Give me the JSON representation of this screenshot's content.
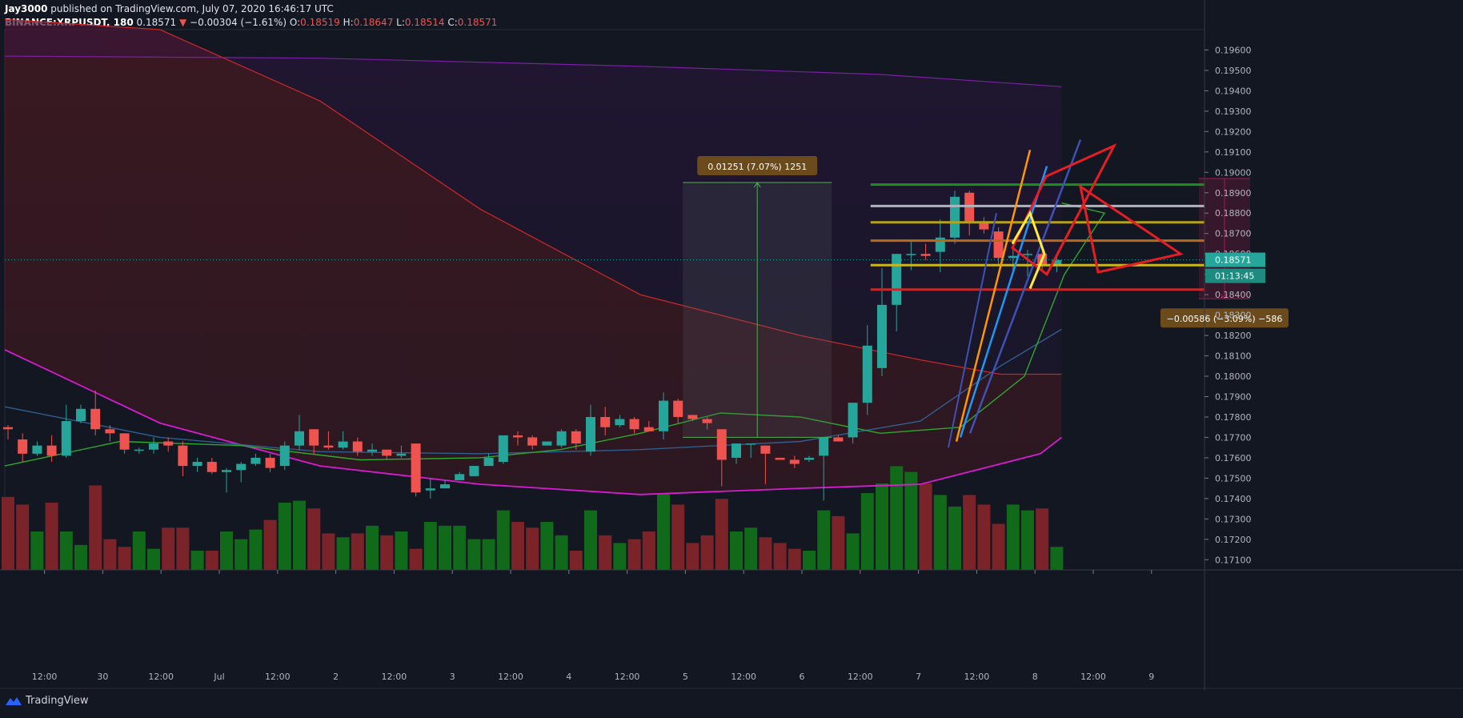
{
  "header": {
    "author": "Jay3000",
    "published": "published on TradingView.com, July 07, 2020 16:46:17 UTC",
    "symbol": "BINANCE:XRPUSDT, 180",
    "last": "0.18571",
    "change": "−0.00304 (−1.61%)",
    "o_label": "O:",
    "o": "0.18519",
    "h_label": "H:",
    "h": "0.18647",
    "l_label": "L:",
    "l": "0.18514",
    "c_label": "C:",
    "c": "0.18571"
  },
  "footer": {
    "brand": "TradingView"
  },
  "chart_data": {
    "type": "candlestick",
    "symbol": "BINANCE:XRPUSDT",
    "interval": "180",
    "ylim": [
      0.1705,
      0.197
    ],
    "y_ticks": [
      0.171,
      0.172,
      0.173,
      0.174,
      0.175,
      0.176,
      0.177,
      0.178,
      0.179,
      0.18,
      0.181,
      0.182,
      0.183,
      0.184,
      0.185,
      0.186,
      0.187,
      0.188,
      0.189,
      0.19,
      0.191,
      0.192,
      0.193,
      0.194,
      0.195,
      0.196
    ],
    "y_tick_labels": [
      "0.17100",
      "0.17200",
      "0.17300",
      "0.17400",
      "0.17500",
      "0.17600",
      "0.17700",
      "0.17800",
      "0.17900",
      "0.18000",
      "0.18100",
      "0.18200",
      "0.18300",
      "0.18400",
      "0.18500",
      "0.18600",
      "0.18700",
      "0.18800",
      "0.18900",
      "0.19000",
      "0.19100",
      "0.19200",
      "0.19300",
      "0.19400",
      "0.19500",
      "0.19600"
    ],
    "x_tick_labels": [
      "12:00",
      "30",
      "12:00",
      "Jul",
      "12:00",
      "2",
      "12:00",
      "3",
      "12:00",
      "4",
      "12:00",
      "5",
      "12:00",
      "6",
      "12:00",
      "7",
      "12:00",
      "8",
      "12:00",
      "9"
    ],
    "x_tick_slots": [
      3,
      7,
      11,
      15,
      19,
      23,
      27,
      31,
      35,
      39,
      43,
      47,
      51,
      55,
      59,
      63,
      67,
      71,
      75,
      79
    ],
    "candles": [
      [
        0.1775,
        0.1774,
        0.1769,
        0.1776
      ],
      [
        0.1769,
        0.1762,
        0.1758,
        0.1772
      ],
      [
        0.1762,
        0.1766,
        0.1761,
        0.1768
      ],
      [
        0.1766,
        0.1761,
        0.1758,
        0.1771
      ],
      [
        0.1761,
        0.1778,
        0.176,
        0.1786
      ],
      [
        0.1778,
        0.1784,
        0.1777,
        0.1786
      ],
      [
        0.1784,
        0.1774,
        0.1771,
        0.1793
      ],
      [
        0.1774,
        0.1772,
        0.1768,
        0.1776
      ],
      [
        0.1772,
        0.1764,
        0.1762,
        0.1772
      ],
      [
        0.1764,
        0.1764,
        0.1762,
        0.1765
      ],
      [
        0.1764,
        0.1767,
        0.1762,
        0.177
      ],
      [
        0.1768,
        0.1766,
        0.1763,
        0.177
      ],
      [
        0.1766,
        0.1756,
        0.1751,
        0.1768
      ],
      [
        0.1756,
        0.1758,
        0.1753,
        0.176
      ],
      [
        0.1758,
        0.1753,
        0.1752,
        0.176
      ],
      [
        0.1753,
        0.1754,
        0.1743,
        0.1755
      ],
      [
        0.1754,
        0.1757,
        0.1748,
        0.1758
      ],
      [
        0.1757,
        0.176,
        0.1756,
        0.1762
      ],
      [
        0.176,
        0.1755,
        0.1753,
        0.1762
      ],
      [
        0.1756,
        0.1766,
        0.1754,
        0.1768
      ],
      [
        0.1766,
        0.1773,
        0.1764,
        0.1781
      ],
      [
        0.1774,
        0.1766,
        0.1762,
        0.1774
      ],
      [
        0.1766,
        0.1765,
        0.1764,
        0.1773
      ],
      [
        0.1765,
        0.1768,
        0.1764,
        0.1773
      ],
      [
        0.1768,
        0.1763,
        0.1761,
        0.177
      ],
      [
        0.1763,
        0.1764,
        0.1761,
        0.1767
      ],
      [
        0.1764,
        0.1761,
        0.1759,
        0.1762
      ],
      [
        0.1761,
        0.1762,
        0.176,
        0.1766
      ],
      [
        0.1767,
        0.1743,
        0.1741,
        0.1767
      ],
      [
        0.1744,
        0.1745,
        0.174,
        0.175
      ],
      [
        0.1745,
        0.1747,
        0.1745,
        0.1749
      ],
      [
        0.1749,
        0.1752,
        0.1749,
        0.1753
      ],
      [
        0.1751,
        0.1756,
        0.1751,
        0.1756
      ],
      [
        0.1756,
        0.176,
        0.1756,
        0.1762
      ],
      [
        0.1758,
        0.1771,
        0.1757,
        0.1771
      ],
      [
        0.1771,
        0.177,
        0.1766,
        0.1773
      ],
      [
        0.177,
        0.1766,
        0.1764,
        0.1771
      ],
      [
        0.1766,
        0.1768,
        0.1766,
        0.1768
      ],
      [
        0.1766,
        0.1773,
        0.1765,
        0.1774
      ],
      [
        0.1773,
        0.1767,
        0.1764,
        0.1774
      ],
      [
        0.1763,
        0.178,
        0.1761,
        0.1786
      ],
      [
        0.178,
        0.1775,
        0.1771,
        0.1785
      ],
      [
        0.1776,
        0.1779,
        0.1775,
        0.1781
      ],
      [
        0.1779,
        0.1774,
        0.1772,
        0.178
      ],
      [
        0.1775,
        0.1773,
        0.1773,
        0.1778
      ],
      [
        0.1773,
        0.1788,
        0.1769,
        0.1792
      ],
      [
        0.1788,
        0.178,
        0.1777,
        0.1789
      ],
      [
        0.1781,
        0.1779,
        0.1778,
        0.1781
      ],
      [
        0.1779,
        0.1777,
        0.1774,
        0.178
      ],
      [
        0.1774,
        0.1759,
        0.1746,
        0.1774
      ],
      [
        0.176,
        0.1767,
        0.1757,
        0.1767
      ],
      [
        0.1767,
        0.1767,
        0.176,
        0.1767
      ],
      [
        0.1766,
        0.1762,
        0.1747,
        0.1766
      ],
      [
        0.176,
        0.1759,
        0.1759,
        0.176
      ],
      [
        0.1759,
        0.1757,
        0.1755,
        0.1761
      ],
      [
        0.1759,
        0.176,
        0.1758,
        0.1761
      ],
      [
        0.1761,
        0.177,
        0.1739,
        0.177
      ],
      [
        0.177,
        0.1768,
        0.1768,
        0.1771
      ],
      [
        0.177,
        0.1787,
        0.1767,
        0.1786
      ],
      [
        0.1787,
        0.1815,
        0.1781,
        0.1825
      ],
      [
        0.1804,
        0.1835,
        0.18,
        0.1853
      ],
      [
        0.1835,
        0.186,
        0.1822,
        0.186
      ],
      [
        0.186,
        0.186,
        0.1852,
        0.1866
      ],
      [
        0.186,
        0.1859,
        0.1857,
        0.1865
      ],
      [
        0.1861,
        0.1868,
        0.1851,
        0.1877
      ],
      [
        0.1868,
        0.1888,
        0.1865,
        0.1891
      ],
      [
        0.189,
        0.1876,
        0.1869,
        0.1891
      ],
      [
        0.1876,
        0.1872,
        0.187,
        0.1878
      ],
      [
        0.1871,
        0.1858,
        0.1855,
        0.1873
      ],
      [
        0.1858,
        0.1859,
        0.185,
        0.1864
      ],
      [
        0.186,
        0.186,
        0.1849,
        0.1862
      ],
      [
        0.186,
        0.1855,
        0.1852,
        0.1865
      ],
      [
        0.1855,
        0.1857,
        0.1851,
        0.186
      ]
    ],
    "volumes": [
      0.38,
      0.34,
      0.2,
      0.35,
      0.2,
      0.13,
      0.44,
      0.16,
      0.12,
      0.2,
      0.11,
      0.22,
      0.22,
      0.1,
      0.1,
      0.2,
      0.16,
      0.21,
      0.26,
      0.35,
      0.36,
      0.32,
      0.19,
      0.17,
      0.19,
      0.23,
      0.18,
      0.2,
      0.11,
      0.25,
      0.23,
      0.23,
      0.16,
      0.16,
      0.31,
      0.25,
      0.22,
      0.25,
      0.18,
      0.1,
      0.31,
      0.18,
      0.14,
      0.16,
      0.2,
      0.4,
      0.34,
      0.14,
      0.18,
      0.37,
      0.2,
      0.22,
      0.17,
      0.14,
      0.11,
      0.1,
      0.31,
      0.28,
      0.19,
      0.4,
      0.45,
      0.54,
      0.51,
      0.45,
      0.39,
      0.33,
      0.39,
      0.34,
      0.24,
      0.34,
      0.31,
      0.32,
      0.12
    ],
    "annotations": {
      "measure_up": "0.01251 (7.07%) 1251",
      "measure_down": "−0.00586 (−3.09%) −586",
      "price_label": "0.18571",
      "countdown": "01:13:45"
    },
    "horizontal_levels": [
      {
        "price": 0.1894,
        "color": "#1e8f1e"
      },
      {
        "price": 0.18835,
        "color": "#b0b3be"
      },
      {
        "price": 0.18755,
        "color": "#b5a21c"
      },
      {
        "price": 0.18665,
        "color": "#b56a1c"
      },
      {
        "price": 0.18545,
        "color": "#c9b71c"
      },
      {
        "price": 0.18425,
        "color": "#c62828"
      }
    ],
    "colors": {
      "up": "#26a69a",
      "down": "#ef5350",
      "vol_up": "#11691a",
      "vol_down": "#7a2429",
      "background": "#131722"
    },
    "grid": false
  }
}
